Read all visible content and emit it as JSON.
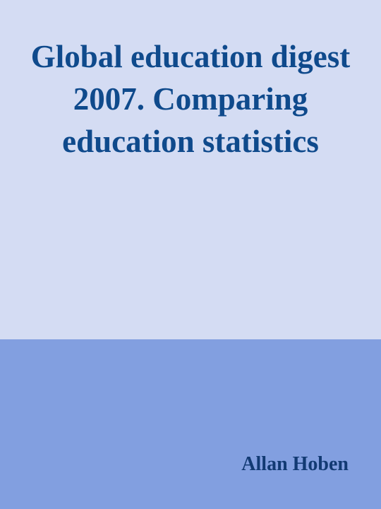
{
  "cover": {
    "title": "Global education digest 2007. Comparing education statistics",
    "author": "Allan Hoben",
    "colors": {
      "top_background": "#d4dcf3",
      "bottom_background": "#829fe0",
      "title_text": "#0f4a8c",
      "author_text": "#123a73"
    }
  }
}
